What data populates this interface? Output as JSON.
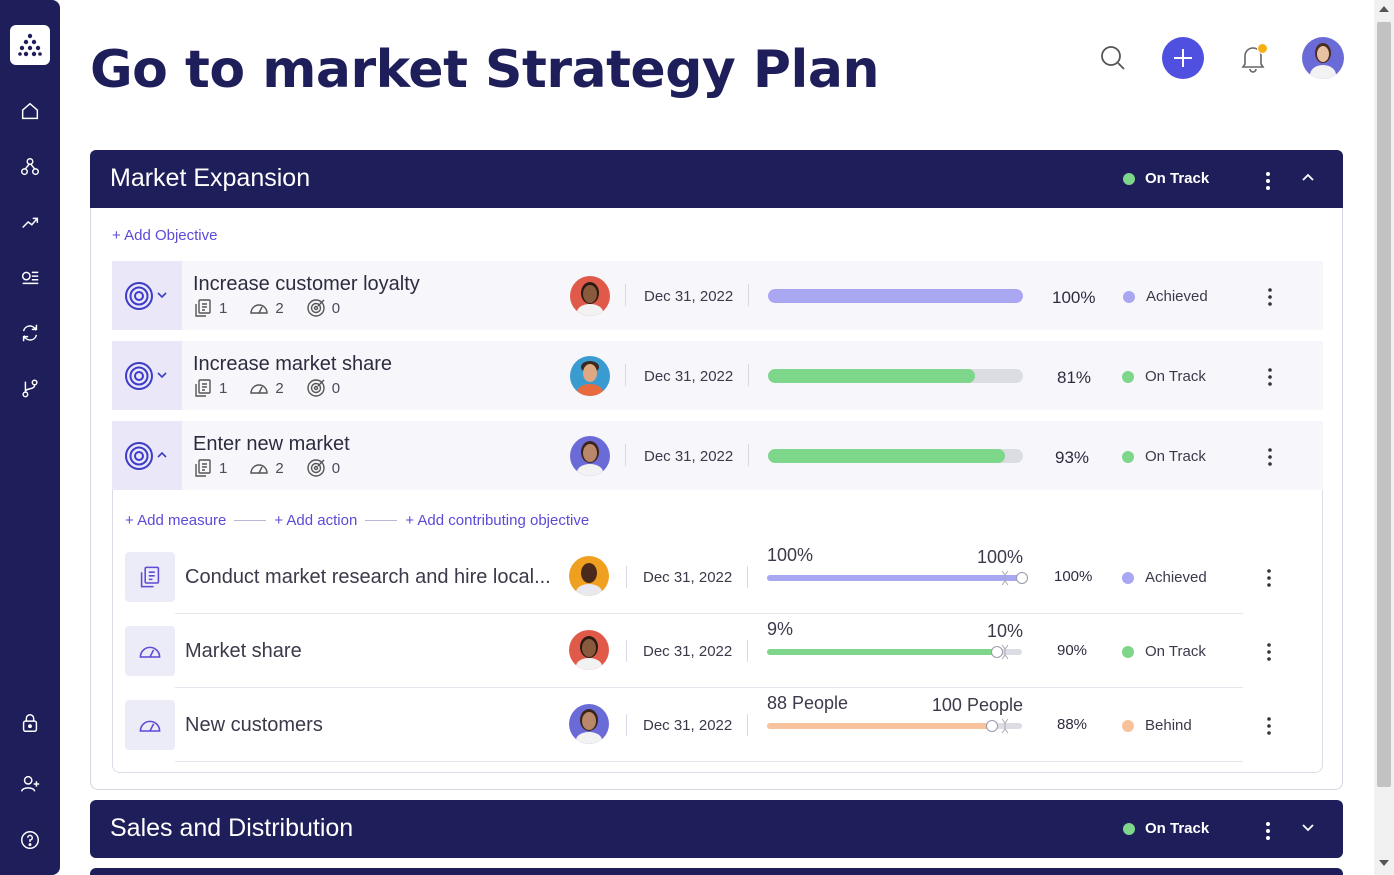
{
  "page": {
    "title": "Go to market Strategy Plan"
  },
  "colors": {
    "navy": "#1e1e5a",
    "accent": "#4f4fe0",
    "link": "#5b4bd6",
    "achieved": "#a9a6f2",
    "on_track": "#7dd68a",
    "behind": "#f8c29c"
  },
  "sidebar": {
    "items": [
      {
        "icon": "logo-icon"
      },
      {
        "icon": "home-icon"
      },
      {
        "icon": "hierarchy-icon"
      },
      {
        "icon": "trend-icon"
      },
      {
        "icon": "list-check-icon"
      },
      {
        "icon": "sync-icon"
      },
      {
        "icon": "branch-icon"
      },
      {
        "icon": "lock-icon"
      },
      {
        "icon": "add-user-icon"
      },
      {
        "icon": "help-icon"
      }
    ]
  },
  "header": {
    "icons": [
      "search-icon",
      "plus-icon",
      "bell-icon",
      "avatar"
    ]
  },
  "sections": [
    {
      "title": "Market Expansion",
      "status": "On Track",
      "add_objective": "+ Add Objective",
      "objectives": [
        {
          "title": "Increase customer loyalty",
          "actions": "1",
          "measures": "2",
          "objectives": "0",
          "date": "Dec 31, 2022",
          "progress": 100,
          "progress_label": "100%",
          "status": "Achieved"
        },
        {
          "title": "Increase market share",
          "actions": "1",
          "measures": "2",
          "objectives": "0",
          "date": "Dec 31, 2022",
          "progress": 81,
          "progress_label": "81%",
          "status": "On Track"
        },
        {
          "title": "Enter new market",
          "actions": "1",
          "measures": "2",
          "objectives": "0",
          "date": "Dec 31, 2022",
          "progress": 93,
          "progress_label": "93%",
          "status": "On Track"
        }
      ],
      "expanded": {
        "add_measure": "+ Add measure",
        "add_action": "+ Add action",
        "add_contributing": "+ Add contributing objective",
        "items": [
          {
            "title": "Conduct market research and hire local...",
            "date": "Dec 31, 2022",
            "current": "100%",
            "target": "100%",
            "progress": 100,
            "pct": "100%",
            "status": "Achieved"
          },
          {
            "title": "Market share",
            "date": "Dec 31, 2022",
            "current": "9%",
            "target": "10%",
            "progress": 90,
            "pct": "90%",
            "status": "On Track"
          },
          {
            "title": "New customers",
            "date": "Dec 31, 2022",
            "current": "88 People",
            "target": "100 People",
            "progress": 88,
            "pct": "88%",
            "status": "Behind"
          }
        ]
      }
    },
    {
      "title": "Sales and Distribution",
      "status": "On Track"
    }
  ]
}
